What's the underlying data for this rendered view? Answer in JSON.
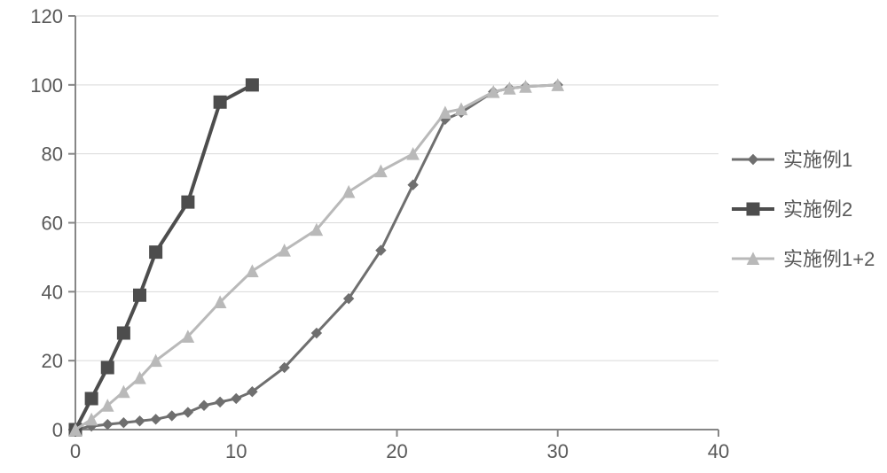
{
  "chart": {
    "type": "line",
    "background_color": "#ffffff",
    "plot_border_color": "#868686",
    "plot_border_width": 2,
    "font_size": 22,
    "text_color": "#595959",
    "x": {
      "lim": [
        0,
        40
      ],
      "ticks": [
        0,
        10,
        20,
        30,
        40
      ],
      "tick_labels": [
        "0",
        "10",
        "20",
        "30",
        "40"
      ]
    },
    "y": {
      "lim": [
        0,
        120
      ],
      "ticks": [
        0,
        20,
        40,
        60,
        80,
        100,
        120
      ],
      "tick_labels": [
        "0",
        "20",
        "40",
        "60",
        "80",
        "100",
        "120"
      ]
    },
    "gridlines_color": "#d9d9d9",
    "gridlines_width": 1,
    "series": [
      {
        "key": "s1",
        "label": "实施例1",
        "color": "#6f6f6f",
        "line_width": 3,
        "marker": "diamond",
        "marker_size": 11,
        "x": [
          0,
          1,
          2,
          3,
          4,
          5,
          6,
          7,
          8,
          9,
          10,
          11,
          13,
          15,
          17,
          19,
          21,
          23,
          24,
          26,
          27,
          28,
          30
        ],
        "y": [
          0,
          1,
          1.5,
          2,
          2.5,
          3,
          4,
          5,
          7,
          8,
          9,
          11,
          18,
          28,
          38,
          52,
          71,
          90,
          92,
          98,
          99,
          99.5,
          100
        ]
      },
      {
        "key": "s2",
        "label": "实施例2",
        "color": "#4d4d4d",
        "line_width": 4,
        "marker": "square",
        "marker_size": 14,
        "x": [
          0,
          1,
          2,
          3,
          4,
          5,
          7,
          9,
          11
        ],
        "y": [
          0,
          9,
          18,
          28,
          39,
          51.5,
          66,
          95,
          100
        ]
      },
      {
        "key": "s3",
        "label": "实施例1+2",
        "color": "#b9b9b9",
        "line_width": 3,
        "marker": "triangle",
        "marker_size": 13,
        "x": [
          0,
          1,
          2,
          3,
          4,
          5,
          7,
          9,
          11,
          13,
          15,
          17,
          19,
          21,
          23,
          24,
          26,
          27,
          28,
          30
        ],
        "y": [
          0,
          3,
          7,
          11,
          15,
          20,
          27,
          37,
          46,
          52,
          58,
          69,
          75,
          80,
          92,
          93,
          98,
          99,
          99.5,
          100
        ]
      }
    ],
    "legend": {
      "position": "right",
      "items_order": [
        "s1",
        "s2",
        "s3"
      ]
    }
  }
}
